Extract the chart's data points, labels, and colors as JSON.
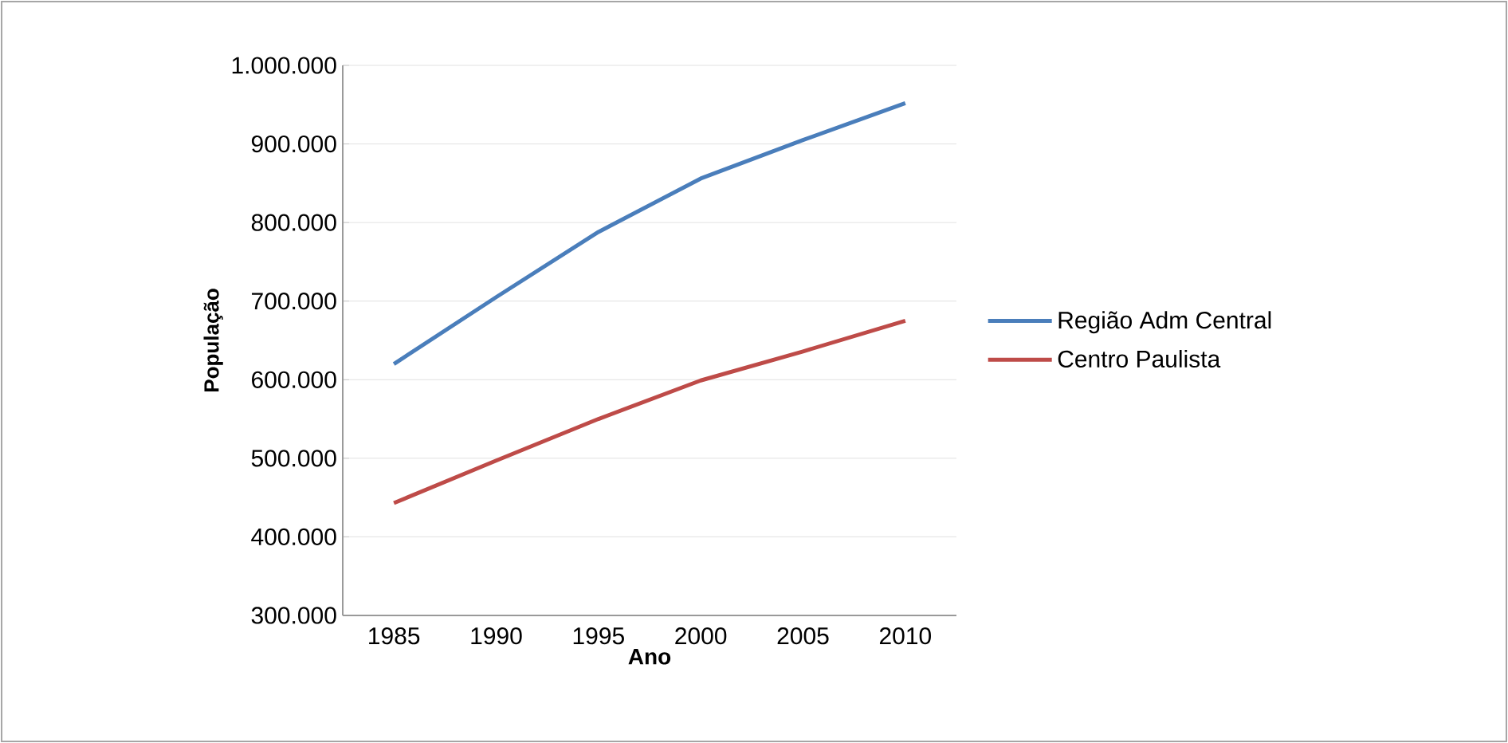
{
  "chart_data": {
    "type": "line",
    "xlabel": "Ano",
    "ylabel": "População",
    "categories": [
      "1985",
      "1990",
      "1995",
      "2000",
      "2005",
      "2010"
    ],
    "series": [
      {
        "name": "Região Adm Central",
        "color": "#4a7ebb",
        "values": [
          620000,
          705000,
          788000,
          856000,
          905000,
          952000
        ]
      },
      {
        "name": "Centro Paulista",
        "color": "#be4b48",
        "values": [
          443000,
          497000,
          550000,
          599000,
          636000,
          675000
        ]
      }
    ],
    "ylim": [
      300000,
      1000000
    ],
    "yticks": [
      {
        "value": 300000,
        "label": "300.000"
      },
      {
        "value": 400000,
        "label": "400.000"
      },
      {
        "value": 500000,
        "label": "500.000"
      },
      {
        "value": 600000,
        "label": "600.000"
      },
      {
        "value": 700000,
        "label": "700.000"
      },
      {
        "value": 800000,
        "label": "800.000"
      },
      {
        "value": 900000,
        "label": "900.000"
      },
      {
        "value": 1000000,
        "label": "1.000.000"
      }
    ],
    "grid": "y",
    "legend": "right",
    "marker": "none",
    "line_style": "solid"
  }
}
